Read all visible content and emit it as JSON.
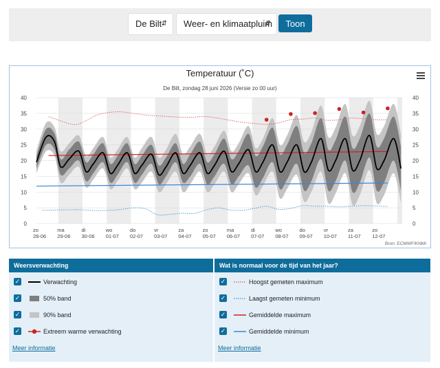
{
  "controls": {
    "location": "De Bilt",
    "type": "Weer- en klimaatpluim",
    "submit_label": "Toon"
  },
  "chart_data": {
    "type": "line",
    "title": "Temperatuur (˚C)",
    "subtitle": "De Bilt, zondag 28 juni 2026 (Versie zo 00 uur)",
    "credits": "Bron: ECMWF/KNMI",
    "ylim": [
      0,
      40
    ],
    "yticks": [
      0,
      5,
      10,
      15,
      20,
      25,
      30,
      35,
      40
    ],
    "xlim": [
      0,
      15.1
    ],
    "day_labels": [
      {
        "day": "zo",
        "date": "28-06"
      },
      {
        "day": "ma",
        "date": "29-06"
      },
      {
        "day": "di",
        "date": "30-06"
      },
      {
        "day": "wo",
        "date": "01-07"
      },
      {
        "day": "do",
        "date": "02-07"
      },
      {
        "day": "vr",
        "date": "03-07"
      },
      {
        "day": "za",
        "date": "04-07"
      },
      {
        "day": "zo",
        "date": "05-07"
      },
      {
        "day": "ma",
        "date": "06-07"
      },
      {
        "day": "di",
        "date": "07-07"
      },
      {
        "day": "wo",
        "date": "08-07"
      },
      {
        "day": "do",
        "date": "09-07"
      },
      {
        "day": "vr",
        "date": "10-07"
      },
      {
        "day": "za",
        "date": "11-07"
      },
      {
        "day": "zo",
        "date": "12-07"
      }
    ],
    "forecast": {
      "x": [
        0,
        0.4,
        0.75,
        1.0,
        1.35,
        1.75,
        2.05,
        2.35,
        2.75,
        3.05,
        3.35,
        3.75,
        4.05,
        4.35,
        4.75,
        5.05,
        5.35,
        5.75,
        6.05,
        6.35,
        6.75,
        7.05,
        7.35,
        7.75,
        8.05,
        8.35,
        8.75,
        9.05,
        9.35,
        9.75,
        10.05,
        10.35,
        10.75,
        11.05,
        11.35,
        11.75,
        12.05,
        12.35,
        12.75,
        13.05,
        13.35,
        13.75,
        14.05,
        14.35,
        14.75,
        15.05
      ],
      "y": [
        19.5,
        27.5,
        26,
        18,
        20.5,
        23,
        16.5,
        19,
        22.5,
        16,
        18.5,
        22.5,
        16,
        18.5,
        22,
        15.5,
        18,
        22.5,
        16,
        18.5,
        22.5,
        16,
        18.5,
        23,
        16.5,
        19,
        23.5,
        16.5,
        19.5,
        25,
        16.5,
        19.5,
        25,
        16.5,
        19.5,
        27,
        17,
        20,
        27,
        17,
        20,
        28,
        17.5,
        20,
        27,
        17.5
      ],
      "p50": [
        2.0,
        2.5,
        2.5,
        2.5,
        3,
        3,
        3,
        3,
        3,
        3,
        3,
        3,
        3,
        3,
        3,
        3,
        3,
        3,
        3,
        3.5,
        3.5,
        3.5,
        3.5,
        4,
        4,
        4,
        5,
        5,
        5,
        5.5,
        5.5,
        5.5,
        6,
        6,
        6,
        6.5,
        6.5,
        6.5,
        7,
        7,
        7,
        7,
        7,
        7,
        7,
        7
      ],
      "p90": [
        3.5,
        4.5,
        4.5,
        5,
        5,
        5,
        5,
        5,
        5,
        5,
        5,
        5,
        5,
        5.5,
        5.5,
        5.5,
        5.5,
        6,
        6,
        6,
        6,
        6,
        6,
        6.5,
        6.5,
        6.5,
        7.5,
        7.5,
        7.5,
        8.5,
        8.5,
        8.5,
        9.5,
        9.5,
        9.5,
        10.5,
        10.5,
        10.5,
        11,
        11,
        11,
        11,
        11,
        11,
        11,
        11
      ]
    },
    "extreme_warm": [
      {
        "x": 9.5,
        "y": 33
      },
      {
        "x": 10.5,
        "y": 34.8
      },
      {
        "x": 11.5,
        "y": 35.1
      },
      {
        "x": 12.5,
        "y": 36.4
      },
      {
        "x": 13.5,
        "y": 35.3
      },
      {
        "x": 14.5,
        "y": 36.6
      }
    ],
    "record_max": {
      "x": [
        0.5,
        1.5,
        2,
        2.5,
        3,
        3.5,
        4,
        4.5,
        5,
        5.5,
        6,
        6.5,
        7,
        7.5,
        8,
        8.5,
        9,
        9.5,
        10,
        10.5,
        11,
        11.5,
        12,
        12.5,
        13,
        13.5,
        14,
        14.5
      ],
      "y": [
        34,
        31.5,
        32.5,
        34.5,
        35.3,
        35.5,
        35,
        34.5,
        34.2,
        34,
        33.8,
        33.8,
        34,
        33.5,
        32.8,
        32.2,
        31.8,
        31.5,
        32,
        33,
        33.2,
        33.5,
        32.8,
        33,
        33.5,
        33.3,
        33,
        33
      ]
    },
    "record_min": {
      "x": [
        0.25,
        1.5,
        2,
        2.5,
        3,
        3.5,
        4,
        4.5,
        5,
        5.5,
        6,
        6.5,
        7,
        7.5,
        8,
        8.5,
        9,
        9.5,
        10,
        10.5,
        11,
        11.5,
        12,
        12.5,
        13,
        13.5,
        14,
        14.5
      ],
      "y": [
        4.2,
        4.4,
        4.3,
        4.1,
        4.2,
        4.5,
        5.0,
        4.7,
        2.8,
        2.9,
        3.3,
        3.2,
        4.3,
        5.0,
        4.3,
        4.2,
        4.8,
        5.5,
        4.5,
        4.8,
        5.7,
        5.5,
        5.5,
        5.3,
        5.5,
        5.7,
        5.6,
        5.4
      ]
    },
    "normal_max": {
      "x": [
        0.5,
        14.5
      ],
      "y": [
        21.6,
        22.9
      ]
    },
    "normal_min": {
      "x": [
        0,
        14.5
      ],
      "y": [
        11.9,
        12.9
      ]
    }
  },
  "colors": {
    "forecast": "#000000",
    "band50": "#7f7f7f",
    "band90": "#c4c4c4",
    "extreme": "#cc2222",
    "record_max": "#e05b5b",
    "record_min": "#3a9ad9",
    "normal_max": "#cc2222",
    "normal_min": "#3a87d0",
    "accent": "#0f6d9c"
  },
  "legend_left": {
    "title": "Weersverwachting",
    "items": [
      "Verwachting",
      "50% band",
      "90% band",
      "Extreem warme verwachting"
    ],
    "more": "Meer informatie"
  },
  "legend_right": {
    "title": "Wat is normaal voor de tijd van het jaar?",
    "items": [
      "Hoogst gemeten maximum",
      "Laagst gemeten minimum",
      "Gemiddelde maximum",
      "Gemiddelde minimum"
    ],
    "more": "Meer informatie"
  },
  "check_mark": "✓"
}
